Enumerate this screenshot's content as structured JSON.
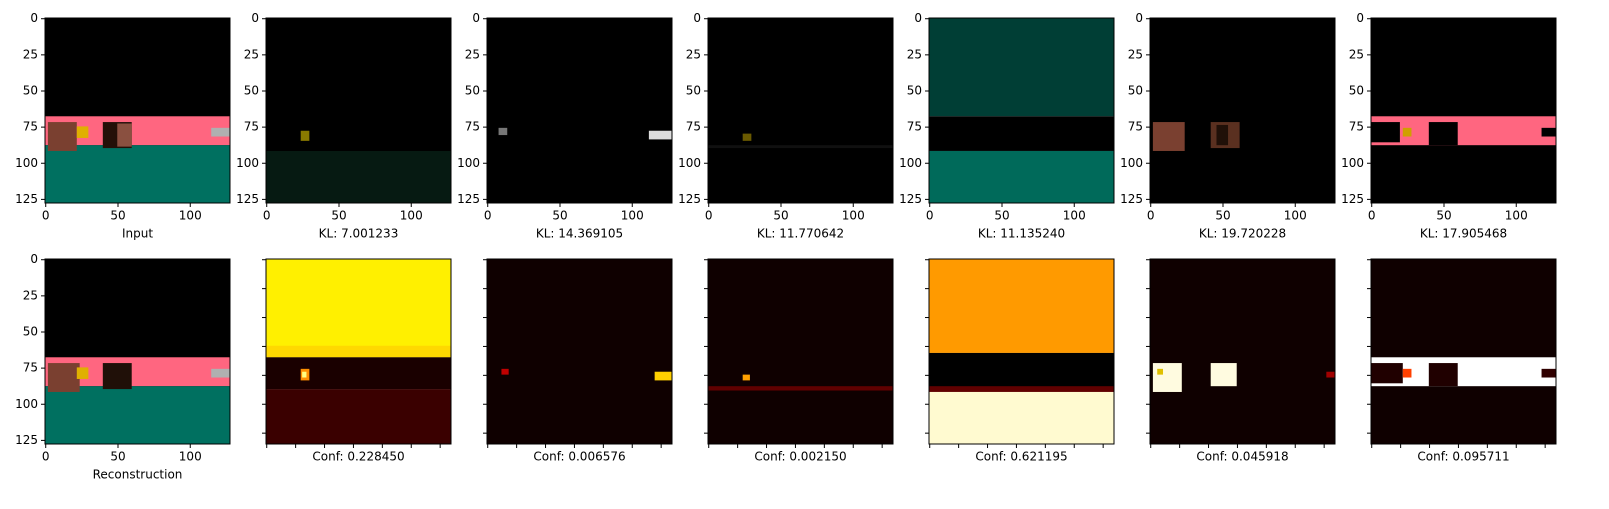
{
  "chart_data": [
    {
      "type": "image",
      "xlabel": "Input",
      "xlim": [
        -0.5,
        127.5
      ],
      "ylim": [
        127.5,
        -0.5
      ],
      "xticks": [
        0,
        50,
        100
      ],
      "yticks": [
        0,
        25,
        50,
        75,
        100,
        125
      ],
      "tick_labels": true
    },
    {
      "type": "image",
      "xlabel": "KL: 7.001233",
      "xlim": [
        -0.5,
        127.5
      ],
      "ylim": [
        127.5,
        -0.5
      ],
      "xticks": [
        0,
        50,
        100
      ],
      "yticks": [
        0,
        25,
        50,
        75,
        100,
        125
      ],
      "tick_labels": true
    },
    {
      "type": "image",
      "xlabel": "KL: 14.369105",
      "xlim": [
        -0.5,
        127.5
      ],
      "ylim": [
        127.5,
        -0.5
      ],
      "xticks": [
        0,
        50,
        100
      ],
      "yticks": [
        0,
        25,
        50,
        75,
        100,
        125
      ],
      "tick_labels": true
    },
    {
      "type": "image",
      "xlabel": "KL: 11.770642",
      "xlim": [
        -0.5,
        127.5
      ],
      "ylim": [
        127.5,
        -0.5
      ],
      "xticks": [
        0,
        50,
        100
      ],
      "yticks": [
        0,
        25,
        50,
        75,
        100,
        125
      ],
      "tick_labels": true
    },
    {
      "type": "image",
      "xlabel": "KL: 11.135240",
      "xlim": [
        -0.5,
        127.5
      ],
      "ylim": [
        127.5,
        -0.5
      ],
      "xticks": [
        0,
        50,
        100
      ],
      "yticks": [
        0,
        25,
        50,
        75,
        100,
        125
      ],
      "tick_labels": true
    },
    {
      "type": "image",
      "xlabel": "KL: 19.720228",
      "xlim": [
        -0.5,
        127.5
      ],
      "ylim": [
        127.5,
        -0.5
      ],
      "xticks": [
        0,
        50,
        100
      ],
      "yticks": [
        0,
        25,
        50,
        75,
        100,
        125
      ],
      "tick_labels": true
    },
    {
      "type": "image",
      "xlabel": "KL: 17.905468",
      "xlim": [
        -0.5,
        127.5
      ],
      "ylim": [
        127.5,
        -0.5
      ],
      "xticks": [
        0,
        50,
        100
      ],
      "yticks": [
        0,
        25,
        50,
        75,
        100,
        125
      ],
      "tick_labels": true
    },
    {
      "type": "image",
      "xlabel": "Reconstruction",
      "xlim": [
        -0.5,
        127.5
      ],
      "ylim": [
        127.5,
        -0.5
      ],
      "xticks": [
        0,
        50,
        100
      ],
      "yticks": [
        0,
        25,
        50,
        75,
        100,
        125
      ],
      "tick_labels": true
    },
    {
      "type": "image",
      "xlabel": "Conf: 0.228450",
      "xlim": [
        -0.5,
        127.5
      ],
      "ylim": [
        127.5,
        -0.5
      ],
      "xticks": [
        0,
        20,
        40,
        60,
        80,
        100,
        120
      ],
      "yticks": [
        0,
        20,
        40,
        60,
        80,
        100,
        120
      ],
      "tick_labels": false
    },
    {
      "type": "image",
      "xlabel": "Conf: 0.006576",
      "xlim": [
        -0.5,
        127.5
      ],
      "ylim": [
        127.5,
        -0.5
      ],
      "xticks": [
        0,
        20,
        40,
        60,
        80,
        100,
        120
      ],
      "yticks": [
        0,
        20,
        40,
        60,
        80,
        100,
        120
      ],
      "tick_labels": false
    },
    {
      "type": "image",
      "xlabel": "Conf: 0.002150",
      "xlim": [
        -0.5,
        127.5
      ],
      "ylim": [
        127.5,
        -0.5
      ],
      "xticks": [
        0,
        20,
        40,
        60,
        80,
        100,
        120
      ],
      "yticks": [
        0,
        20,
        40,
        60,
        80,
        100,
        120
      ],
      "tick_labels": false
    },
    {
      "type": "image",
      "xlabel": "Conf: 0.621195",
      "xlim": [
        -0.5,
        127.5
      ],
      "ylim": [
        127.5,
        -0.5
      ],
      "xticks": [
        0,
        20,
        40,
        60,
        80,
        100,
        120
      ],
      "yticks": [
        0,
        20,
        40,
        60,
        80,
        100,
        120
      ],
      "tick_labels": false
    },
    {
      "type": "image",
      "xlabel": "Conf: 0.045918",
      "xlim": [
        -0.5,
        127.5
      ],
      "ylim": [
        127.5,
        -0.5
      ],
      "xticks": [
        0,
        20,
        40,
        60,
        80,
        100,
        120
      ],
      "yticks": [
        0,
        20,
        40,
        60,
        80,
        100,
        120
      ],
      "tick_labels": false
    },
    {
      "type": "image",
      "xlabel": "Conf: 0.095711",
      "xlim": [
        -0.5,
        127.5
      ],
      "ylim": [
        127.5,
        -0.5
      ],
      "xticks": [
        0,
        20,
        40,
        60,
        80,
        100,
        120
      ],
      "yticks": [
        0,
        20,
        40,
        60,
        80,
        100,
        120
      ],
      "tick_labels": false
    }
  ]
}
